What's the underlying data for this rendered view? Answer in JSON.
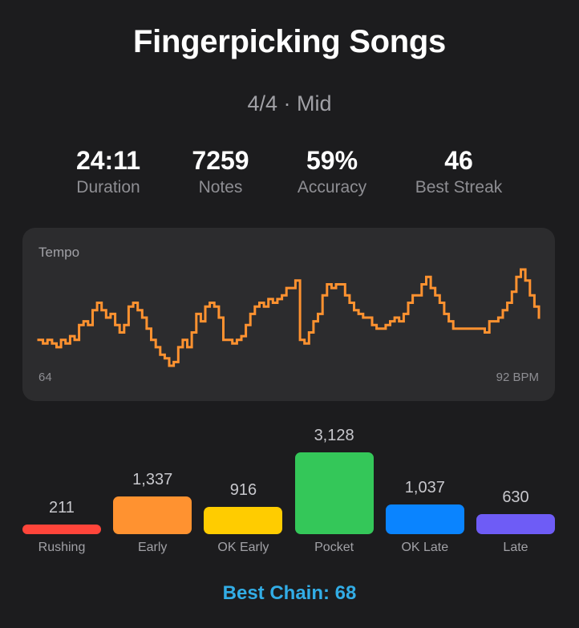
{
  "title": "Fingerpicking Songs",
  "subtitle": "4/4 · Mid",
  "stats": [
    {
      "value": "24:11",
      "label": "Duration"
    },
    {
      "value": "7259",
      "label": "Notes"
    },
    {
      "value": "59%",
      "label": "Accuracy"
    },
    {
      "value": "46",
      "label": "Best Streak"
    }
  ],
  "tempo": {
    "label": "Tempo",
    "min_label": "64",
    "max_label": "92 BPM",
    "color": "#ff9230",
    "series": [
      70,
      69,
      70,
      69,
      68,
      70,
      69,
      71,
      70,
      74,
      75,
      74,
      78,
      80,
      78,
      76,
      77,
      74,
      72,
      74,
      79,
      80,
      78,
      76,
      73,
      70,
      68,
      66,
      65,
      63,
      64,
      68,
      70,
      68,
      72,
      77,
      75,
      79,
      80,
      79,
      76,
      70,
      70,
      69,
      70,
      71,
      74,
      77,
      79,
      80,
      79,
      81,
      80,
      81,
      82,
      84,
      84,
      86,
      70,
      69,
      72,
      75,
      77,
      82,
      85,
      84,
      85,
      85,
      82,
      80,
      78,
      77,
      76,
      76,
      74,
      73,
      73,
      74,
      75,
      76,
      75,
      77,
      80,
      82,
      82,
      85,
      87,
      84,
      82,
      80,
      77,
      75,
      73,
      73,
      73,
      73,
      73,
      73,
      73,
      72,
      75,
      75,
      76,
      78,
      80,
      83,
      87,
      89,
      86,
      82,
      79,
      76
    ]
  },
  "timing": {
    "items": [
      {
        "label": "Rushing",
        "value": "211",
        "count": 211,
        "color": "#ff453a"
      },
      {
        "label": "Early",
        "value": "1,337",
        "count": 1337,
        "color": "#ff9230"
      },
      {
        "label": "OK Early",
        "value": "916",
        "count": 916,
        "color": "#ffcc00"
      },
      {
        "label": "Pocket",
        "value": "3,128",
        "count": 3128,
        "color": "#34c759"
      },
      {
        "label": "OK Late",
        "value": "1,037",
        "count": 1037,
        "color": "#0a84ff"
      },
      {
        "label": "Late",
        "value": "630",
        "count": 630,
        "color": "#6e5cf6"
      }
    ]
  },
  "best_chain": "Best Chain: 68"
}
